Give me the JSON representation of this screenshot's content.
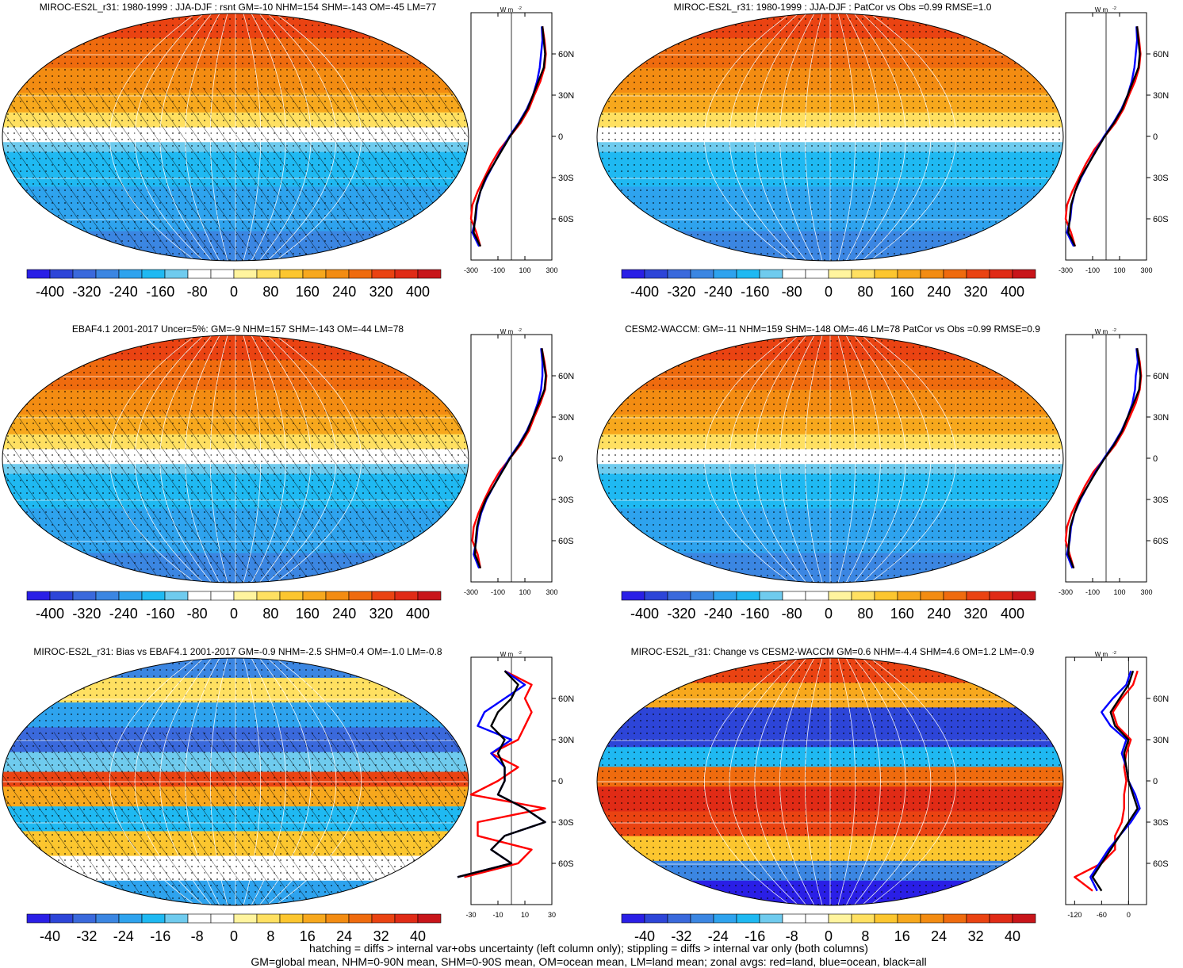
{
  "panels": [
    {
      "title": "MIROC-ES2L_r31: 1980-1999 : JJA-DJF : rsnt GM=-10 NHM=154 SHM=-143 OM=-45 LM=77",
      "scale": "abs",
      "hatched": true,
      "zonal_xticks": [
        "-300",
        "-100",
        "100",
        "300"
      ],
      "colorbar_labels": [
        "-400",
        "-320",
        "-240",
        "-160",
        "-80",
        "0",
        "80",
        "160",
        "240",
        "320",
        "400"
      ]
    },
    {
      "title": "MIROC-ES2L_r31: 1980-1999 : JJA-DJF : PatCor vs Obs =0.99 RMSE=1.0",
      "scale": "abs",
      "hatched": false,
      "zonal_xticks": [
        "-300",
        "-100",
        "100",
        "300"
      ],
      "colorbar_labels": [
        "-400",
        "-320",
        "-240",
        "-160",
        "-80",
        "0",
        "80",
        "160",
        "240",
        "320",
        "400"
      ]
    },
    {
      "title": "EBAF4.1 2001-2017 Uncer=5%: GM=-9 NHM=157 SHM=-143 OM=-44 LM=78",
      "scale": "abs",
      "hatched": true,
      "zonal_xticks": [
        "-300",
        "-100",
        "100",
        "300"
      ],
      "colorbar_labels": [
        "-400",
        "-320",
        "-240",
        "-160",
        "-80",
        "0",
        "80",
        "160",
        "240",
        "320",
        "400"
      ]
    },
    {
      "title": "CESM2-WACCM: GM=-11 NHM=159 SHM=-148 OM=-46 LM=78 PatCor vs Obs =0.99 RMSE=0.9",
      "scale": "abs",
      "hatched": false,
      "zonal_xticks": [
        "-300",
        "-100",
        "100",
        "300"
      ],
      "colorbar_labels": [
        "-400",
        "-320",
        "-240",
        "-160",
        "-80",
        "0",
        "80",
        "160",
        "240",
        "320",
        "400"
      ]
    },
    {
      "title": "MIROC-ES2L_r31: Bias vs EBAF4.1 2001-2017 GM=-0.9 NHM=-2.5 SHM=0.4 OM=-1.0 LM=-0.8",
      "scale": "diff",
      "hatched": true,
      "zonal_xticks": [
        "-30",
        "-10",
        "10",
        "30"
      ],
      "colorbar_labels": [
        "-40",
        "-32",
        "-24",
        "-16",
        "-8",
        "0",
        "8",
        "16",
        "24",
        "32",
        "40"
      ]
    },
    {
      "title": "MIROC-ES2L_r31: Change vs CESM2-WACCM GM=0.6 NHM=-4.4 SHM=4.6 OM=1.2 LM=-0.9",
      "scale": "diff",
      "hatched": false,
      "zonal_xticks": [
        "-120",
        "-60",
        "0"
      ],
      "colorbar_labels": [
        "-40",
        "-32",
        "-24",
        "-16",
        "-8",
        "0",
        "8",
        "16",
        "24",
        "32",
        "40"
      ]
    }
  ],
  "zonal": {
    "unit": "W m",
    "unit_sup": "-2",
    "lat_labels": [
      "60N",
      "30N",
      "0",
      "30S",
      "60S"
    ]
  },
  "colors": {
    "palette": [
      "#2a1fe6",
      "#2d45d8",
      "#3a69dc",
      "#3b86e2",
      "#2ea3ee",
      "#1fb9f2",
      "#6fcbee",
      "#ffffff",
      "#ffffff",
      "#fff49e",
      "#ffe061",
      "#fcc62f",
      "#f7a81d",
      "#f38c12",
      "#ef6b0e",
      "#ea4312",
      "#e02b16",
      "#c8151a"
    ],
    "land_zonal": "#ff0000",
    "ocean_zonal": "#0000ff",
    "all_zonal": "#000000"
  },
  "chart_data": {
    "type": "heatmap",
    "variable": "rsnt",
    "colorbar_abs": [
      -400,
      -320,
      -240,
      -160,
      -80,
      0,
      80,
      160,
      240,
      320,
      400
    ],
    "colorbar_diff": [
      -40,
      -32,
      -24,
      -16,
      -8,
      0,
      8,
      16,
      24,
      32,
      40
    ],
    "panels": [
      {
        "title": "MIROC-ES2L_r31: 1980-1999 : JJA-DJF : rsnt",
        "GM": -10,
        "NHM": 154,
        "SHM": -143,
        "OM": -45,
        "LM": 77,
        "zonal_lat": [
          80,
          70,
          60,
          50,
          40,
          30,
          20,
          10,
          0,
          -10,
          -20,
          -30,
          -40,
          -50,
          -60,
          -70,
          -80
        ],
        "zonal_all": [
          230,
          240,
          250,
          240,
          200,
          160,
          120,
          60,
          -10,
          -70,
          -130,
          -190,
          -230,
          -260,
          -270,
          -280,
          -230
        ],
        "zonal_land": [
          230,
          245,
          255,
          245,
          215,
          170,
          130,
          70,
          -10,
          -90,
          -150,
          -200,
          -250,
          -290,
          -300,
          -260,
          -230
        ],
        "zonal_ocean": [
          225,
          230,
          220,
          210,
          190,
          160,
          115,
          55,
          -15,
          -75,
          -130,
          -185,
          -230,
          -255,
          -265,
          -290,
          -240
        ]
      },
      {
        "title": "MIROC-ES2L_r31: 1980-1999 : JJA-DJF",
        "PatCor": 0.99,
        "RMSE": 1.0,
        "zonal_lat": [
          80,
          70,
          60,
          50,
          40,
          30,
          20,
          10,
          0,
          -10,
          -20,
          -30,
          -40,
          -50,
          -60,
          -70,
          -80
        ],
        "zonal_all": [
          230,
          240,
          250,
          240,
          200,
          160,
          120,
          60,
          -10,
          -70,
          -130,
          -190,
          -230,
          -260,
          -270,
          -280,
          -230
        ],
        "zonal_land": [
          230,
          245,
          255,
          245,
          215,
          170,
          130,
          70,
          -10,
          -90,
          -150,
          -200,
          -250,
          -290,
          -300,
          -260,
          -230
        ],
        "zonal_ocean": [
          225,
          230,
          220,
          210,
          190,
          160,
          115,
          55,
          -15,
          -75,
          -130,
          -185,
          -230,
          -255,
          -265,
          -290,
          -240
        ]
      },
      {
        "title": "EBAF4.1 2001-2017",
        "Uncer": "5%",
        "GM": -9,
        "NHM": 157,
        "SHM": -143,
        "OM": -44,
        "LM": 78,
        "zonal_lat": [
          80,
          70,
          60,
          50,
          40,
          30,
          20,
          10,
          0,
          -10,
          -20,
          -30,
          -40,
          -50,
          -60,
          -70,
          -80
        ],
        "zonal_all": [
          225,
          240,
          255,
          245,
          205,
          160,
          120,
          60,
          -10,
          -70,
          -130,
          -190,
          -230,
          -255,
          -265,
          -270,
          -230
        ],
        "zonal_land": [
          225,
          245,
          260,
          250,
          215,
          170,
          130,
          70,
          -10,
          -90,
          -150,
          -200,
          -245,
          -280,
          -290,
          -250,
          -230
        ],
        "zonal_ocean": [
          220,
          230,
          230,
          220,
          195,
          160,
          115,
          55,
          -15,
          -75,
          -130,
          -185,
          -225,
          -250,
          -260,
          -280,
          -240
        ]
      },
      {
        "title": "CESM2-WACCM",
        "GM": -11,
        "NHM": 159,
        "SHM": -148,
        "OM": -46,
        "LM": 78,
        "PatCor": 0.99,
        "RMSE": 0.9,
        "zonal_lat": [
          80,
          70,
          60,
          50,
          40,
          30,
          20,
          10,
          0,
          -10,
          -20,
          -30,
          -40,
          -50,
          -60,
          -70,
          -80
        ],
        "zonal_all": [
          230,
          245,
          255,
          245,
          205,
          160,
          120,
          60,
          -10,
          -75,
          -135,
          -195,
          -235,
          -265,
          -275,
          -280,
          -240
        ],
        "zonal_land": [
          230,
          250,
          260,
          250,
          220,
          175,
          130,
          70,
          -10,
          -95,
          -155,
          -205,
          -255,
          -290,
          -300,
          -270,
          -240
        ],
        "zonal_ocean": [
          225,
          235,
          220,
          215,
          195,
          160,
          115,
          55,
          -15,
          -80,
          -135,
          -190,
          -235,
          -260,
          -270,
          -290,
          -250
        ]
      },
      {
        "title": "MIROC-ES2L_r31: Bias vs EBAF4.1 2001-2017",
        "GM": -0.9,
        "NHM": -2.5,
        "SHM": 0.4,
        "OM": -1.0,
        "LM": -0.8,
        "zonal_lat": [
          80,
          70,
          60,
          50,
          40,
          30,
          20,
          10,
          0,
          -10,
          -20,
          -30,
          -40,
          -50,
          -60,
          -70
        ],
        "zonal_all": [
          -5,
          5,
          0,
          -10,
          -15,
          -5,
          -10,
          -5,
          -5,
          -10,
          10,
          25,
          -5,
          -15,
          0,
          -40
        ],
        "zonal_land": [
          -5,
          15,
          10,
          15,
          10,
          5,
          -15,
          5,
          -10,
          -30,
          25,
          -25,
          -25,
          15,
          5,
          -35
        ],
        "zonal_ocean": [
          -5,
          10,
          -5,
          -20,
          -25,
          0,
          -15,
          -5,
          -5,
          -10,
          10,
          25,
          -5,
          -15,
          0,
          -40
        ]
      },
      {
        "title": "MIROC-ES2L_r31: Change vs CESM2-WACCM",
        "GM": 0.6,
        "NHM": -4.4,
        "SHM": 4.6,
        "OM": 1.2,
        "LM": -0.9,
        "zonal_lat": [
          80,
          70,
          60,
          50,
          40,
          30,
          20,
          10,
          0,
          -10,
          -20,
          -30,
          -40,
          -50,
          -60,
          -70,
          -80
        ],
        "zonal_all": [
          10,
          0,
          -20,
          -40,
          -30,
          0,
          -10,
          -5,
          0,
          10,
          20,
          0,
          -20,
          -40,
          -60,
          -80,
          -60
        ],
        "zonal_land": [
          20,
          10,
          -15,
          -35,
          -25,
          5,
          -5,
          -10,
          -5,
          -10,
          -10,
          -15,
          -30,
          -30,
          -60,
          -120,
          -80
        ],
        "zonal_ocean": [
          5,
          -5,
          -35,
          -60,
          -40,
          -5,
          -15,
          -5,
          0,
          15,
          25,
          5,
          -20,
          -45,
          -65,
          -85,
          -70
        ]
      }
    ]
  },
  "footer": {
    "line1": "hatching = diffs > internal var+obs uncertainty (left column only); stippling = diffs > internal var only (both columns)",
    "line2": "GM=global mean, NHM=0-90N mean, SHM=0-90S mean, OM=ocean mean, LM=land mean; zonal avgs: red=land, blue=ocean, black=all"
  }
}
